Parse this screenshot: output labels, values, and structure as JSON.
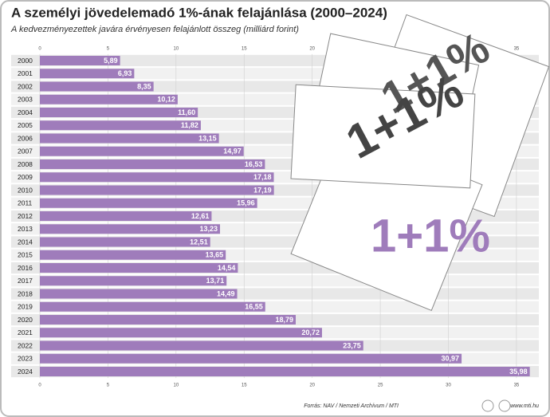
{
  "chart_data": {
    "type": "barh",
    "title": "A személyi jövedelemadó 1%-ának felajánlása (2000–2024)",
    "subtitle": "A kedvezményezettek javára érvényesen felajánlott összeg (milliárd forint)",
    "categories": [
      "2000",
      "2001",
      "2002",
      "2003",
      "2004",
      "2005",
      "2006",
      "2007",
      "2008",
      "2009",
      "2010",
      "2011",
      "2012",
      "2013",
      "2014",
      "2015",
      "2016",
      "2017",
      "2018",
      "2019",
      "2020",
      "2021",
      "2022",
      "2023",
      "2024"
    ],
    "values": [
      5.89,
      6.93,
      8.35,
      10.12,
      11.6,
      11.82,
      13.15,
      14.97,
      16.53,
      17.18,
      17.19,
      15.96,
      12.61,
      13.23,
      12.51,
      13.65,
      14.54,
      13.71,
      14.49,
      16.55,
      18.79,
      20.72,
      23.75,
      30.97,
      35.98
    ],
    "value_labels": [
      "5,89",
      "6,93",
      "8,35",
      "10,12",
      "11,60",
      "11,82",
      "13,15",
      "14,97",
      "16,53",
      "17,18",
      "17,19",
      "15,96",
      "12,61",
      "13,23",
      "12,51",
      "13,65",
      "14,54",
      "13,71",
      "14,49",
      "16,55",
      "18,79",
      "20,72",
      "23,75",
      "30,97",
      "35,98"
    ],
    "color": "#9f7cbb",
    "xlim": [
      0,
      36
    ],
    "xticks": [
      0,
      5,
      10,
      15,
      20,
      25,
      30,
      35
    ],
    "grid": true,
    "illustration_texts": [
      "1+1%",
      "1+1%",
      "1+1%"
    ],
    "source": "Forrás: NAV / Nemzeti Archívum / MTI",
    "website": "www.mti.hu"
  }
}
